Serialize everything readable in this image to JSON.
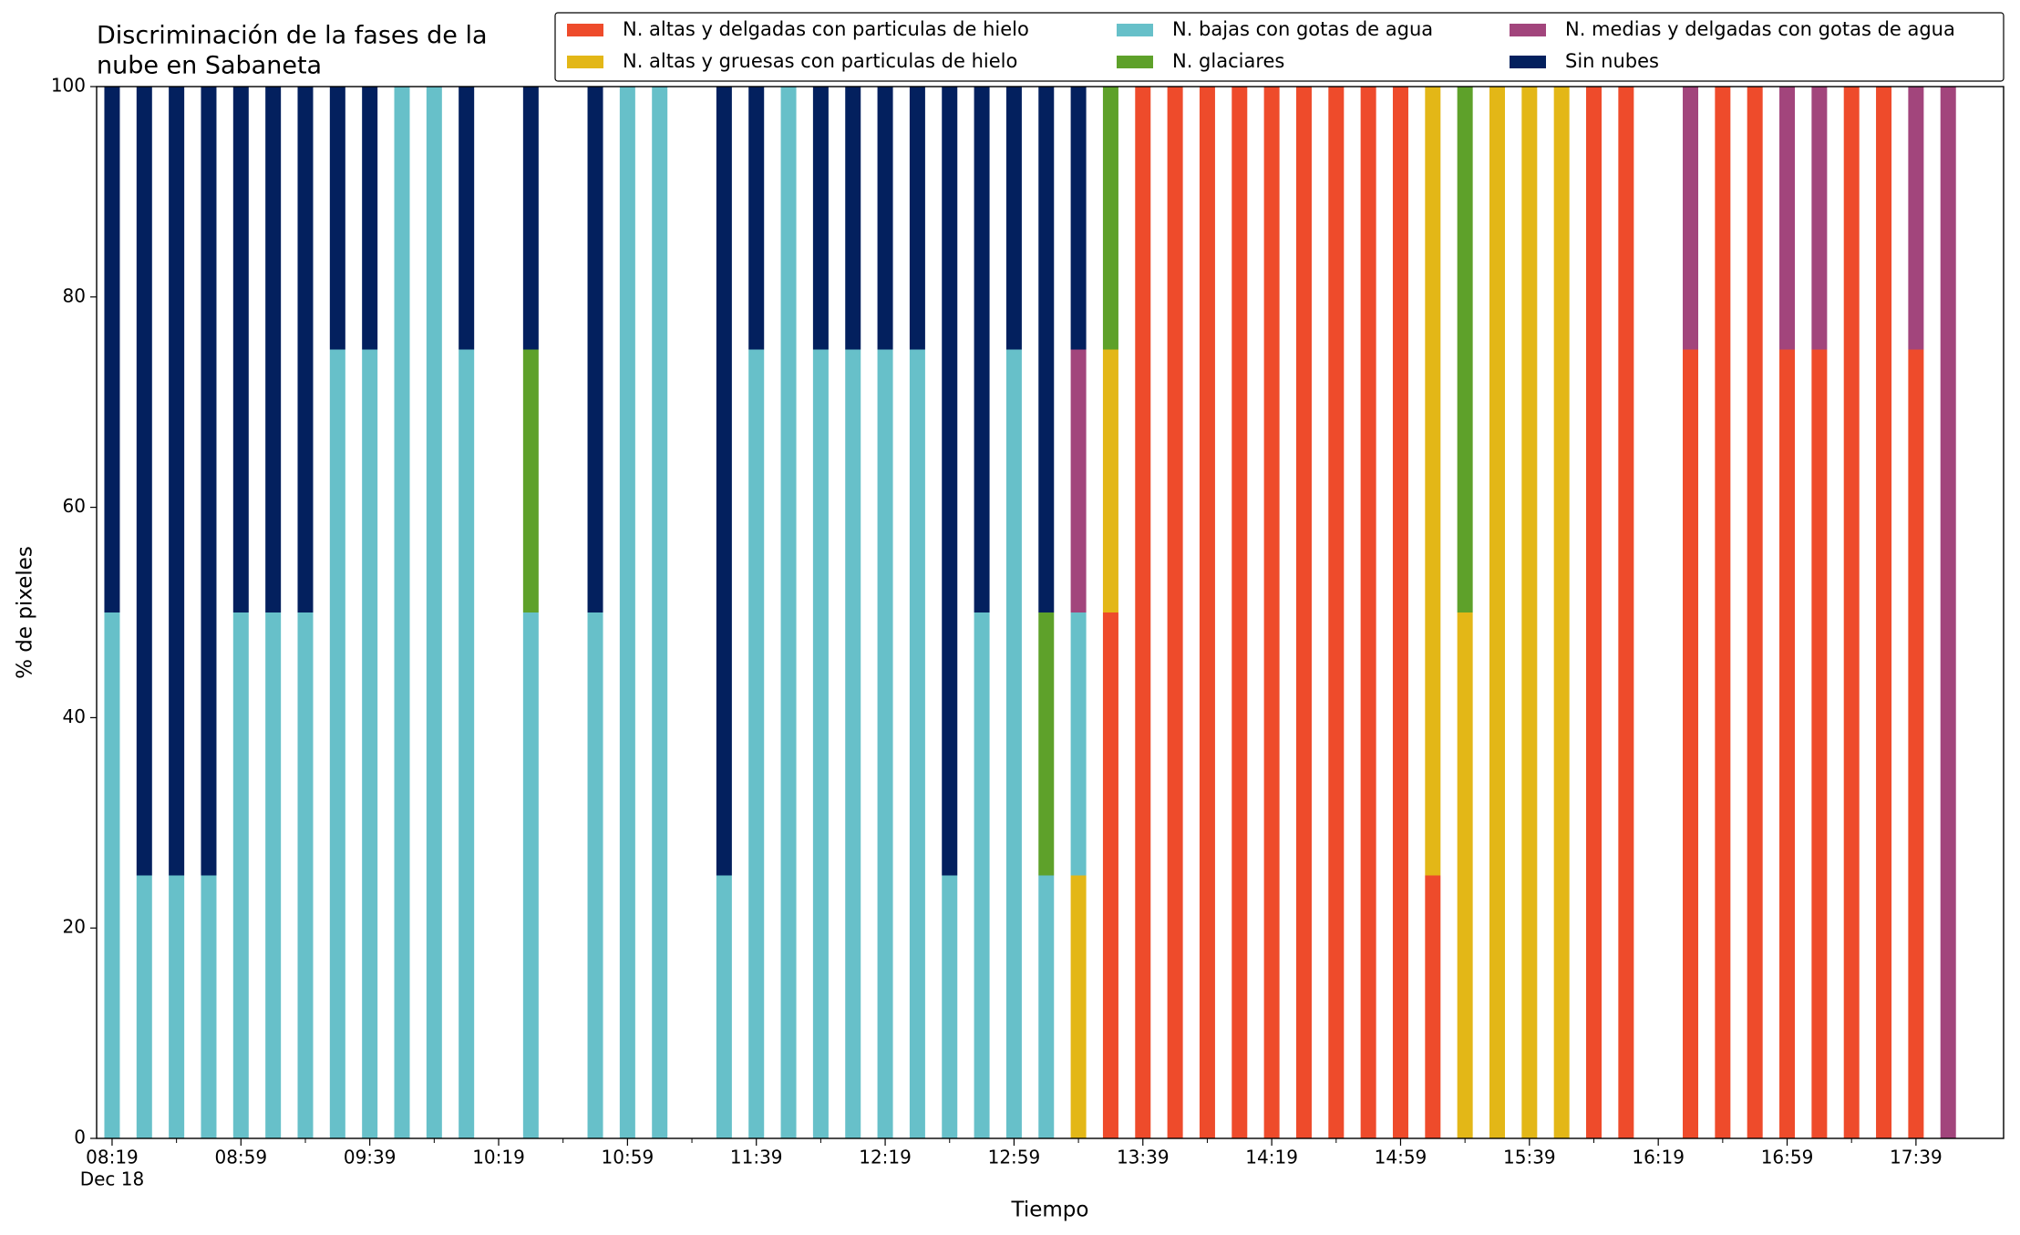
{
  "chart_data": {
    "type": "stacked_bar",
    "title": [
      "Discriminación de la fases de la",
      "nube en Sabaneta"
    ],
    "xlabel": "Tiempo",
    "ylabel": "% de pixeles",
    "x_sublabel": "Dec 18",
    "categories": [
      "08:19",
      null,
      null,
      null,
      "08:59",
      null,
      null,
      null,
      "09:39",
      null,
      null,
      null,
      "10:19",
      null,
      null,
      null,
      "10:59",
      null,
      null,
      null,
      "11:39",
      null,
      null,
      null,
      "12:19",
      null,
      null,
      null,
      "12:59",
      null,
      null,
      null,
      "13:39",
      null,
      null,
      null,
      "14:19",
      null,
      null,
      null,
      "14:59",
      null,
      null,
      null,
      "15:39",
      null,
      null,
      null,
      "16:19",
      null,
      null,
      null,
      "16:59",
      null,
      null,
      null,
      "17:39",
      null
    ],
    "ylim": [
      0,
      100
    ],
    "yticks": [
      0,
      20,
      40,
      60,
      80,
      100
    ],
    "legend": "upper right",
    "series": [
      {
        "name": "N. altas y delgadas con particulas de hielo",
        "color": "#ee4b2b",
        "values": [
          0,
          0,
          0,
          0,
          0,
          0,
          0,
          0,
          0,
          0,
          0,
          0,
          null,
          0,
          null,
          0,
          0,
          0,
          null,
          0,
          0,
          0,
          0,
          0,
          0,
          0,
          0,
          0,
          0,
          0,
          0,
          50,
          100,
          100,
          100,
          100,
          100,
          100,
          100,
          100,
          100,
          25,
          0,
          0,
          0,
          0,
          100,
          100,
          null,
          75,
          100,
          100,
          75,
          75,
          100,
          100,
          75,
          0
        ]
      },
      {
        "name": "N. altas y gruesas con particulas de hielo",
        "color": "#e3b717",
        "values": [
          0,
          0,
          0,
          0,
          0,
          0,
          0,
          0,
          0,
          0,
          0,
          0,
          null,
          0,
          null,
          0,
          0,
          0,
          null,
          0,
          0,
          0,
          0,
          0,
          0,
          0,
          0,
          0,
          0,
          0,
          25,
          25,
          0,
          0,
          0,
          0,
          0,
          0,
          0,
          0,
          0,
          75,
          50,
          100,
          100,
          100,
          0,
          0,
          null,
          0,
          0,
          0,
          0,
          0,
          0,
          0,
          0,
          0
        ]
      },
      {
        "name": "N. bajas con gotas de agua",
        "color": "#67c0c9",
        "values": [
          50,
          25,
          25,
          25,
          50,
          50,
          50,
          75,
          75,
          100,
          100,
          75,
          null,
          50,
          null,
          50,
          100,
          100,
          null,
          25,
          75,
          100,
          75,
          75,
          75,
          75,
          25,
          50,
          75,
          25,
          25,
          0,
          0,
          0,
          0,
          0,
          0,
          0,
          0,
          0,
          0,
          0,
          0,
          0,
          0,
          0,
          0,
          0,
          null,
          0,
          0,
          0,
          0,
          0,
          0,
          0,
          0,
          0
        ]
      },
      {
        "name": "N. glaciares",
        "color": "#5ea12a",
        "values": [
          0,
          0,
          0,
          0,
          0,
          0,
          0,
          0,
          0,
          0,
          0,
          0,
          null,
          25,
          null,
          0,
          0,
          0,
          null,
          0,
          0,
          0,
          0,
          0,
          0,
          0,
          0,
          0,
          0,
          25,
          0,
          25,
          0,
          0,
          0,
          0,
          0,
          0,
          0,
          0,
          0,
          0,
          50,
          0,
          0,
          0,
          0,
          0,
          null,
          0,
          0,
          0,
          0,
          0,
          0,
          0,
          0,
          0
        ]
      },
      {
        "name": "N. medias y delgadas con gotas de agua",
        "color": "#a2457c",
        "values": [
          0,
          0,
          0,
          0,
          0,
          0,
          0,
          0,
          0,
          0,
          0,
          0,
          null,
          0,
          null,
          0,
          0,
          0,
          null,
          0,
          0,
          0,
          0,
          0,
          0,
          0,
          0,
          0,
          0,
          0,
          25,
          0,
          0,
          0,
          0,
          0,
          0,
          0,
          0,
          0,
          0,
          0,
          0,
          0,
          0,
          0,
          0,
          0,
          null,
          25,
          0,
          0,
          25,
          25,
          0,
          0,
          25,
          100
        ]
      },
      {
        "name": "Sin nubes",
        "color": "#03205e",
        "values": [
          50,
          75,
          75,
          75,
          50,
          50,
          50,
          25,
          25,
          0,
          0,
          25,
          null,
          25,
          null,
          50,
          0,
          0,
          null,
          75,
          25,
          0,
          25,
          25,
          25,
          25,
          75,
          50,
          25,
          50,
          25,
          0,
          0,
          0,
          0,
          0,
          0,
          0,
          0,
          0,
          0,
          0,
          0,
          0,
          0,
          0,
          0,
          0,
          null,
          0,
          0,
          0,
          0,
          0,
          0,
          0,
          0,
          0
        ]
      }
    ]
  }
}
